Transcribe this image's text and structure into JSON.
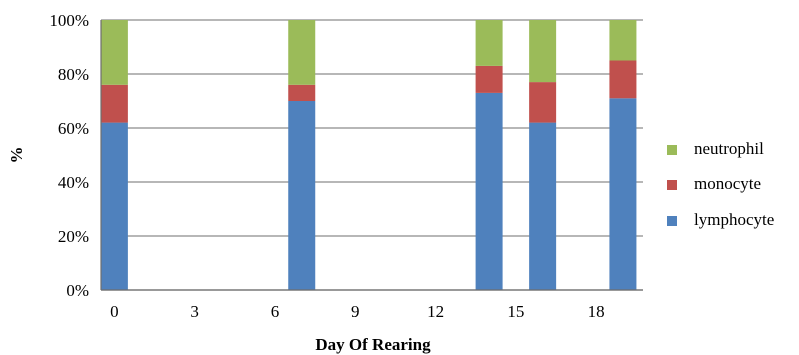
{
  "chart_data": {
    "type": "bar",
    "stacked": true,
    "normalized": true,
    "x": [
      0,
      7,
      14,
      16,
      19
    ],
    "x_ticks": [
      "0",
      "3",
      "6",
      "9",
      "12",
      "15",
      "18"
    ],
    "series": [
      {
        "name": "lymphocyte",
        "color": "#4f81bd",
        "values": [
          62,
          70,
          73,
          62,
          71
        ]
      },
      {
        "name": "monocyte",
        "color": "#c0504d",
        "values": [
          14,
          6,
          10,
          15,
          14
        ]
      },
      {
        "name": "neutrophil",
        "color": "#9bbb59",
        "values": [
          24,
          24,
          17,
          23,
          15
        ]
      }
    ],
    "title": "",
    "xlabel": "Day Of Rearing",
    "ylabel": "%",
    "ylim": [
      0,
      100
    ],
    "y_ticks": [
      "0%",
      "20%",
      "40%",
      "60%",
      "80%",
      "100%"
    ],
    "grid": true,
    "legend_position": "right",
    "legend_order": [
      "neutrophil",
      "monocyte",
      "lymphocyte"
    ]
  }
}
